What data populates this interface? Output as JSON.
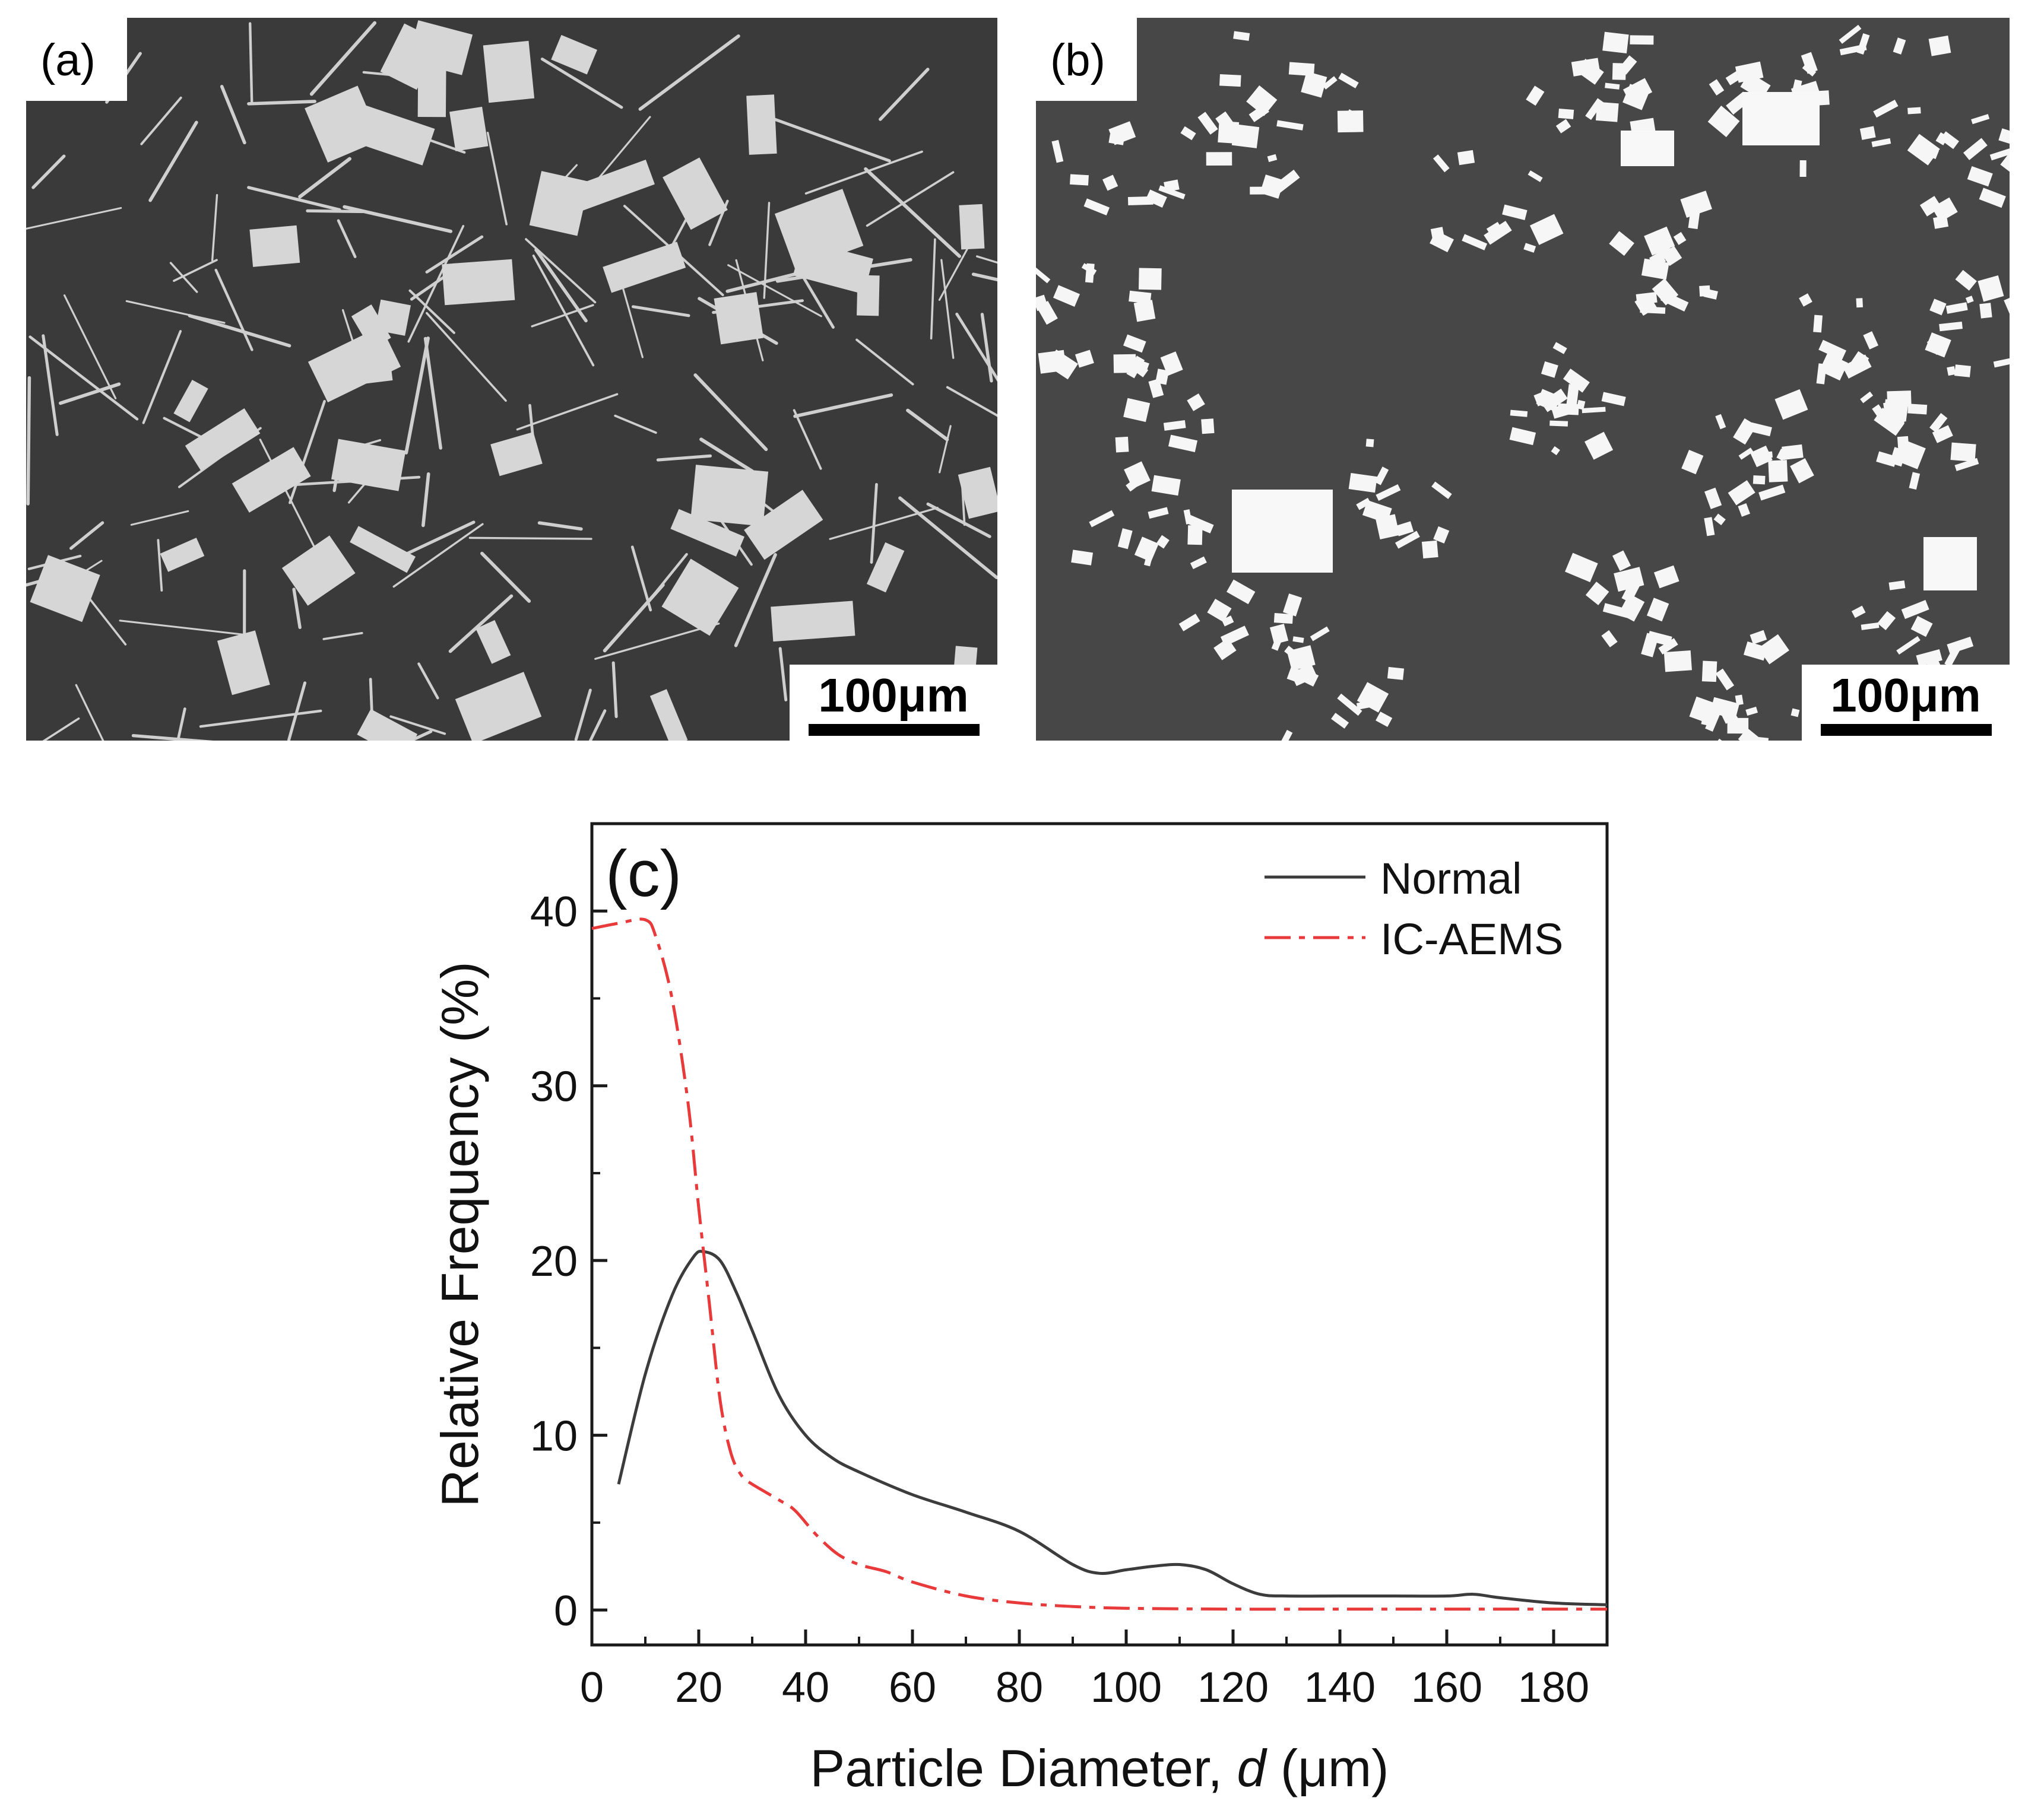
{
  "panel_a": {
    "tag": "(a)",
    "scale_label": "100μm"
  },
  "panel_b": {
    "tag": "(b)",
    "scale_label": "100μm"
  },
  "chart_data": {
    "type": "line",
    "panel_tag": "(c)",
    "xlabel": "Particle Diameter, ",
    "xlabel_italic": "d",
    "xlabel_unit": " (μm)",
    "ylabel": "Relative Frequency (%)",
    "xlim": [
      0,
      190
    ],
    "ylim": [
      -2,
      45
    ],
    "xticks": [
      0,
      20,
      40,
      60,
      80,
      100,
      120,
      140,
      160,
      180
    ],
    "yticks": [
      0,
      10,
      20,
      30,
      40
    ],
    "grid": false,
    "legend_position": "top-right",
    "series": [
      {
        "name": "Normal",
        "color": "#3c3c3c",
        "style": "solid",
        "x": [
          5,
          10,
          15,
          19,
          21,
          24,
          27,
          30,
          35,
          40,
          45,
          50,
          60,
          70,
          80,
          90,
          95,
          100,
          105,
          110,
          115,
          120,
          125,
          130,
          140,
          150,
          160,
          165,
          170,
          180,
          190
        ],
        "y": [
          7.2,
          13.5,
          18.0,
          20.2,
          20.5,
          20.0,
          18.2,
          16.0,
          12.3,
          10.0,
          8.7,
          7.9,
          6.6,
          5.6,
          4.5,
          2.6,
          2.1,
          2.3,
          2.5,
          2.6,
          2.3,
          1.5,
          0.9,
          0.8,
          0.8,
          0.8,
          0.8,
          0.9,
          0.7,
          0.4,
          0.3
        ]
      },
      {
        "name": "IC-AEMS",
        "color": "#e83a3a",
        "style": "dashdot",
        "x": [
          0,
          5,
          10,
          12,
          15,
          18,
          20,
          22,
          24,
          26,
          28,
          30,
          35,
          38,
          42,
          46,
          50,
          55,
          60,
          70,
          80,
          90,
          100,
          120,
          140,
          160,
          180,
          190
        ],
        "y": [
          39,
          39.3,
          39.5,
          38.5,
          35,
          29,
          23,
          17.5,
          12,
          9,
          7.7,
          7.2,
          6.3,
          5.7,
          4.3,
          3.2,
          2.6,
          2.2,
          1.6,
          0.8,
          0.4,
          0.2,
          0.1,
          0.05,
          0.05,
          0.05,
          0.05,
          0.05
        ]
      }
    ]
  }
}
